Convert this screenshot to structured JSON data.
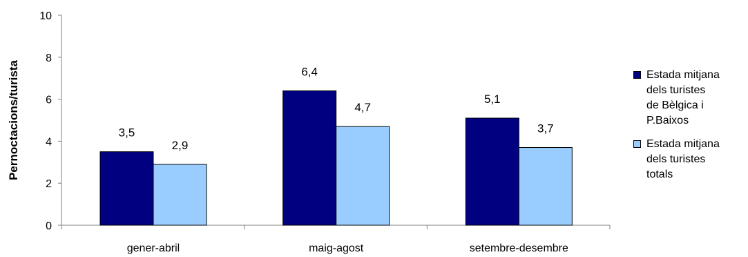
{
  "chart_data": {
    "type": "bar",
    "categories": [
      "gener-abril",
      "maig-agost",
      "setembre-desembre"
    ],
    "series": [
      {
        "name": "Estada mitjana dels turistes de Bèlgica i P.Baixos",
        "values": [
          3.5,
          6.4,
          5.1
        ],
        "labels": [
          "3,5",
          "6,4",
          "5,1"
        ],
        "color": "#000080"
      },
      {
        "name": "Estada mitjana dels turistes totals",
        "values": [
          2.9,
          4.7,
          3.7
        ],
        "labels": [
          "2,9",
          "4,7",
          "3,7"
        ],
        "color": "#99ccff"
      }
    ],
    "title": "",
    "xlabel": "",
    "ylabel": "Pernoctacions/turista",
    "ylim": [
      0,
      10
    ],
    "yticks": [
      0,
      2,
      4,
      6,
      8,
      10
    ],
    "grid": false,
    "legend_position": "right"
  },
  "legend": {
    "items": [
      {
        "lines": [
          "Estada mitjana",
          "dels turistes",
          "de Bèlgica i",
          "P.Baixos"
        ],
        "color": "#000080"
      },
      {
        "lines": [
          "Estada mitjana",
          "dels turistes",
          "totals"
        ],
        "color": "#99ccff"
      }
    ]
  }
}
